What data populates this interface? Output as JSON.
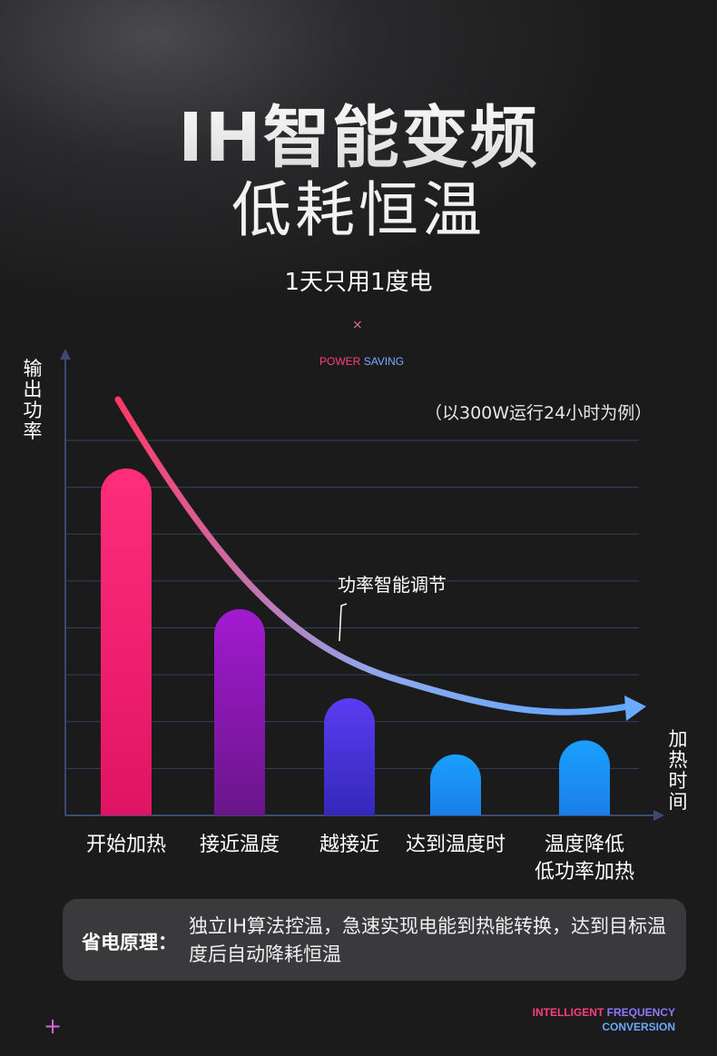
{
  "header": {
    "title": "IH智能变频",
    "subtitle": "低耗恒温",
    "headline": "1天只用1度电",
    "power_saving_word1": "POWER",
    "power_saving_word2": "SAVING",
    "cross_icon": "×",
    "example_note": "（以300W运行24小时为例）"
  },
  "chart_data": {
    "type": "bar",
    "ylabel": "输出功率",
    "xlabel": "加热时间",
    "categories": [
      "开始加热",
      "接近温度",
      "越接近",
      "达到温度时",
      "温度降低\n低功率加热"
    ],
    "values": [
      7.4,
      4.4,
      2.5,
      1.3,
      1.6
    ],
    "ylim": [
      0,
      8
    ],
    "grid": true,
    "annotation": "功率智能调节",
    "bar_colors": [
      [
        "#ff2d7a",
        "#e01464"
      ],
      [
        "#a21ad0",
        "#6a168a"
      ],
      [
        "#5a3cf2",
        "#3428b8"
      ],
      [
        "#1aa0ff",
        "#1a7ee8"
      ],
      [
        "#1aa0ff",
        "#1a7ee8"
      ]
    ],
    "curve_colors": [
      "#ff3a66",
      "#8fa8ee",
      "#5ea8ff"
    ]
  },
  "principle": {
    "label": "省电原理：",
    "text": "独立IH算法控温，急速实现电能到热能转换，达到目标温度后自动降耗恒温"
  },
  "footer": {
    "plus_icon": "+",
    "word1": "INTELLIGENT",
    "word2": "FREQUENCY",
    "word3": "CONVERSION"
  }
}
